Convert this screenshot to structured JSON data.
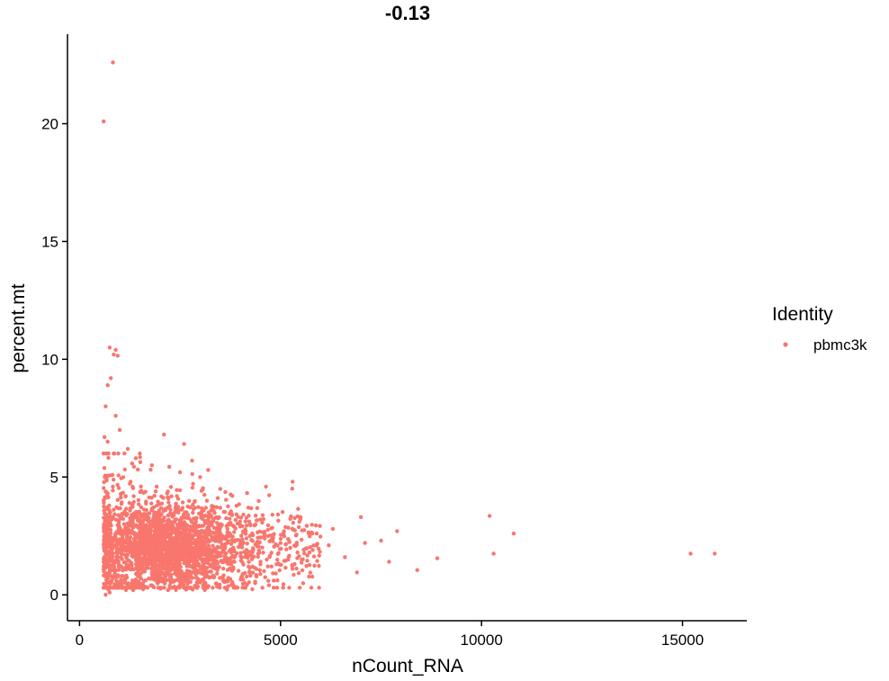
{
  "chart_data": {
    "type": "scatter",
    "title": "-0.13",
    "xlabel": "nCount_RNA",
    "ylabel": "percent.mt",
    "xlim": [
      -300,
      16600
    ],
    "ylim": [
      -1.1,
      23.8
    ],
    "xticks": [
      0,
      5000,
      10000,
      15000
    ],
    "yticks": [
      0,
      5,
      10,
      15,
      20
    ],
    "grid": false,
    "legend": {
      "title": "Identity",
      "position": "right",
      "entries": [
        {
          "label": "pbmc3k",
          "color": "#F8766D"
        }
      ]
    },
    "series": [
      {
        "name": "pbmc3k",
        "color": "#F8766D",
        "points": [
          [
            830,
            22.6
          ],
          [
            600,
            20.1
          ],
          [
            750,
            10.5
          ],
          [
            900,
            10.4
          ],
          [
            850,
            10.2
          ],
          [
            950,
            10.15
          ],
          [
            780,
            9.2
          ],
          [
            700,
            8.9
          ],
          [
            650,
            8.0
          ],
          [
            900,
            7.6
          ],
          [
            620,
            6.7
          ],
          [
            700,
            6.5
          ],
          [
            1000,
            7.0
          ],
          [
            2100,
            6.8
          ],
          [
            2600,
            6.4
          ],
          [
            1500,
            6.0
          ],
          [
            3200,
            5.3
          ],
          [
            5300,
            4.8
          ],
          [
            7000,
            3.3
          ],
          [
            7900,
            2.7
          ],
          [
            7500,
            2.3
          ],
          [
            7700,
            1.4
          ],
          [
            8400,
            1.05
          ],
          [
            8900,
            1.55
          ],
          [
            6900,
            0.95
          ],
          [
            10200,
            3.35
          ],
          [
            10800,
            2.6
          ],
          [
            10300,
            1.75
          ],
          [
            15200,
            1.75
          ],
          [
            15800,
            1.75
          ],
          [
            6300,
            2.8
          ],
          [
            6200,
            2.1
          ],
          [
            5800,
            1.9
          ],
          [
            5900,
            2.6
          ],
          [
            6600,
            1.6
          ],
          [
            7100,
            2.2
          ],
          [
            1800,
            0.4
          ],
          [
            2200,
            0.2
          ],
          [
            650,
            0.0
          ],
          [
            750,
            0.1
          ],
          [
            1000,
            0.5
          ],
          [
            1300,
            0.35
          ],
          [
            5500,
            3.3
          ],
          [
            4800,
            3.4
          ],
          [
            4500,
            3.2
          ],
          [
            4200,
            3.7
          ],
          [
            3800,
            4.2
          ],
          [
            3500,
            4.5
          ],
          [
            3000,
            5.0
          ],
          [
            2800,
            5.7
          ],
          [
            2500,
            5.2
          ],
          [
            1800,
            5.5
          ],
          [
            1400,
            5.8
          ],
          [
            1200,
            6.2
          ],
          [
            4000,
            2.9
          ],
          [
            4600,
            2.5
          ],
          [
            5000,
            2.2
          ],
          [
            5200,
            1.6
          ],
          [
            4900,
            1.3
          ],
          [
            4400,
            1.1
          ]
        ],
        "dense_region": {
          "cx": 2150,
          "cy": 2.0,
          "sx": 900,
          "sy": 0.85,
          "count": 1800
        },
        "bulk": {
          "x_min": 600,
          "x_max": 6000,
          "y_min": 0.3,
          "y_max": 6.0,
          "count": 900
        }
      }
    ]
  }
}
